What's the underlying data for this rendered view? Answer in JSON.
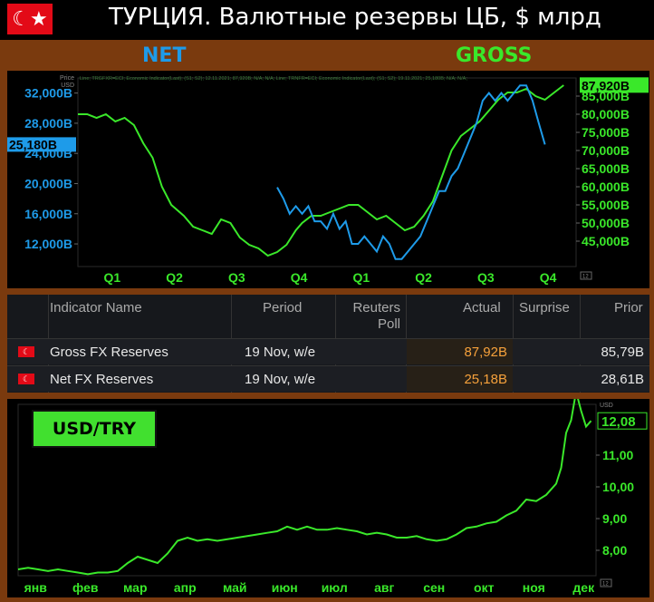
{
  "header": {
    "flag_symbol": "☾★",
    "title": "ТУРЦИЯ. Валютные резервы ЦБ, $ млрд"
  },
  "labels": {
    "net": "NET",
    "gross": "GROSS"
  },
  "colors": {
    "bg": "#7a3a0e",
    "net": "#1e9be9",
    "gross": "#3ae82a",
    "fx": "#3ae82a",
    "actual": "#f6a13b",
    "usd_badge": "#41e02f"
  },
  "chart_data": [
    {
      "type": "line",
      "title": "",
      "axis_corner_label": "Price\nUSD",
      "legend_text": "Line; TRGFXR=ECI; Economic Indicator(Last); (S1; S2); 12.11.2021; 87,920B; N/A; N/A;  Line; TRNFR=ECI; Economic Indicator(Last); (S1; S2); 19.11.2021; 25,180B; N/A; N/A;",
      "x_ticks": [
        "Q1",
        "Q2",
        "Q3",
        "Q4",
        "Q1",
        "Q2",
        "Q3",
        "Q4"
      ],
      "x_range": [
        0,
        8
      ],
      "left_axis": {
        "ticks": [
          "12,000B",
          "16,000B",
          "20,000B",
          "24,000B",
          "28,000B",
          "32,000B"
        ],
        "range": [
          9000,
          34000
        ],
        "last_label": "25,180B"
      },
      "right_axis": {
        "ticks": [
          "45,000B",
          "50,000B",
          "55,000B",
          "60,000B",
          "65,000B",
          "70,000B",
          "75,000B",
          "80,000B",
          "85,000B"
        ],
        "range": [
          38000,
          90000
        ],
        "last_label": "87,920B"
      },
      "scale_badge": "12",
      "series": [
        {
          "name": "Gross",
          "axis": "right",
          "x": [
            0,
            0.15,
            0.3,
            0.45,
            0.6,
            0.75,
            0.9,
            1.05,
            1.2,
            1.35,
            1.5,
            1.7,
            1.85,
            2.0,
            2.15,
            2.3,
            2.45,
            2.6,
            2.75,
            2.9,
            3.05,
            3.2,
            3.35,
            3.5,
            3.6,
            3.75,
            3.9,
            4.05,
            4.2,
            4.35,
            4.5,
            4.65,
            4.8,
            4.95,
            5.1,
            5.25,
            5.4,
            5.55,
            5.7,
            5.85,
            6.0,
            6.15,
            6.3,
            6.45,
            6.6,
            6.75,
            6.9,
            7.05,
            7.2,
            7.35,
            7.5,
            7.65,
            7.8
          ],
          "values": [
            80,
            80,
            79,
            80,
            78,
            79,
            77,
            72,
            68,
            60,
            55,
            52,
            49,
            48,
            47,
            51,
            50,
            46,
            44,
            43,
            41,
            42,
            44,
            48,
            50,
            52,
            52,
            53,
            54,
            55,
            55,
            53,
            51,
            52,
            50,
            48,
            49,
            52,
            56,
            63,
            70,
            74,
            76,
            78,
            81,
            84,
            86,
            86,
            87,
            85,
            84,
            86,
            88
          ]
        },
        {
          "name": "Net",
          "axis": "left",
          "x": [
            3.2,
            3.3,
            3.4,
            3.5,
            3.6,
            3.7,
            3.8,
            3.9,
            4.0,
            4.1,
            4.2,
            4.3,
            4.4,
            4.5,
            4.6,
            4.7,
            4.8,
            4.9,
            5.0,
            5.1,
            5.2,
            5.3,
            5.4,
            5.5,
            5.6,
            5.7,
            5.8,
            5.9,
            6.0,
            6.1,
            6.2,
            6.3,
            6.4,
            6.5,
            6.6,
            6.7,
            6.8,
            6.9,
            7.0,
            7.1,
            7.2,
            7.3,
            7.4,
            7.5
          ],
          "values": [
            19.5,
            18,
            16,
            17,
            16,
            17,
            15,
            15,
            14,
            16,
            14,
            15,
            12,
            12,
            13,
            12,
            11,
            13,
            12,
            10,
            10,
            11,
            12,
            13,
            15,
            17,
            19,
            19,
            21,
            22,
            24,
            26,
            28,
            31,
            32,
            31,
            32,
            31,
            32,
            33,
            33,
            31,
            28,
            25.18
          ]
        }
      ]
    },
    {
      "type": "line",
      "title": "USD/TRY",
      "axis_corner_label": "USD",
      "x_ticks": [
        "янв",
        "фев",
        "мар",
        "апр",
        "май",
        "июн",
        "июл",
        "авг",
        "сен",
        "окт",
        "ноя",
        "дек"
      ],
      "x_range": [
        0,
        11.6
      ],
      "y_ticks": [
        "8,00",
        "9,00",
        "10,00",
        "11,00"
      ],
      "y_range": [
        7.2,
        12.6
      ],
      "last_label": "12,08",
      "scale_badge": "12",
      "series": [
        {
          "name": "USD/TRY",
          "x": [
            0,
            0.2,
            0.4,
            0.6,
            0.8,
            1.0,
            1.2,
            1.4,
            1.6,
            1.8,
            2.0,
            2.2,
            2.4,
            2.6,
            2.8,
            3.0,
            3.2,
            3.4,
            3.6,
            3.8,
            4.0,
            4.2,
            4.4,
            4.6,
            4.8,
            5.0,
            5.2,
            5.4,
            5.6,
            5.8,
            6.0,
            6.2,
            6.4,
            6.6,
            6.8,
            7.0,
            7.2,
            7.4,
            7.6,
            7.8,
            8.0,
            8.2,
            8.4,
            8.6,
            8.8,
            9.0,
            9.2,
            9.4,
            9.6,
            9.8,
            10.0,
            10.2,
            10.4,
            10.6,
            10.8,
            10.9,
            11.0,
            11.1,
            11.2,
            11.3,
            11.4,
            11.5
          ],
          "values": [
            7.4,
            7.45,
            7.4,
            7.35,
            7.4,
            7.35,
            7.3,
            7.25,
            7.3,
            7.3,
            7.35,
            7.6,
            7.8,
            7.7,
            7.6,
            7.9,
            8.3,
            8.4,
            8.3,
            8.35,
            8.3,
            8.35,
            8.4,
            8.45,
            8.5,
            8.55,
            8.6,
            8.75,
            8.65,
            8.75,
            8.65,
            8.65,
            8.7,
            8.65,
            8.6,
            8.5,
            8.55,
            8.5,
            8.4,
            8.4,
            8.45,
            8.35,
            8.3,
            8.35,
            8.5,
            8.7,
            8.75,
            8.85,
            8.9,
            9.1,
            9.25,
            9.6,
            9.55,
            9.75,
            10.1,
            10.6,
            11.7,
            12.1,
            13.0,
            12.4,
            11.9,
            12.08
          ]
        }
      ]
    }
  ],
  "table": {
    "headers": [
      "Indicator Name",
      "Period",
      "Reuters Poll",
      "Actual",
      "Surprise",
      "Prior"
    ],
    "rows": [
      {
        "flag": "☾",
        "name": "Gross FX Reserves",
        "period": "19 Nov, w/e",
        "poll": "",
        "actual": "87,92B",
        "surprise": "",
        "prior": "85,79B"
      },
      {
        "flag": "☾",
        "name": "Net FX Reserves",
        "period": "19 Nov, w/e",
        "poll": "",
        "actual": "25,18B",
        "surprise": "",
        "prior": "28,61B"
      }
    ]
  }
}
